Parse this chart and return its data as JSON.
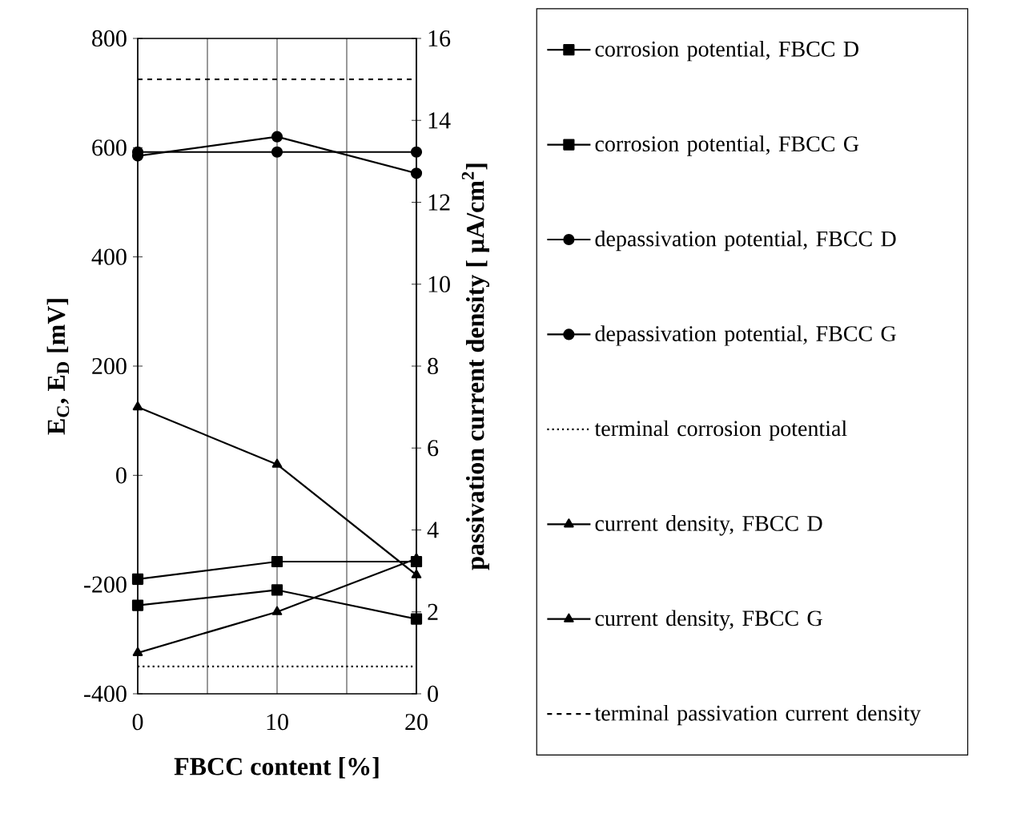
{
  "chart_data": {
    "type": "line",
    "xlabel": "FBCC content [%]",
    "ylabel": "**E$_{C}$, E$_{D}$ [mV]**",
    "y2label": "**passivation current density [ μA/cm$^{2}$]**",
    "x": [
      0,
      10,
      20
    ],
    "series": [
      {
        "name": "corrosion potential, FBCC D",
        "color": "#000000",
        "marker": "square",
        "values": [
          -190,
          -158,
          -158
        ]
      },
      {
        "name": "corrosion potential, FBCC G",
        "color": "#000000",
        "marker": "square",
        "values": [
          -238,
          -210,
          -263
        ]
      },
      {
        "name": "depassivation potential, FBCC D",
        "color": "#000000",
        "marker": "circle",
        "values": [
          585,
          620,
          553
        ]
      },
      {
        "name": "depassivation potential, FBCC G",
        "color": "#000000",
        "marker": "circle",
        "values": [
          592,
          592,
          592
        ]
      },
      {
        "name": "current density, FBCC D",
        "color": "#000000",
        "marker": "triangle",
        "axis": "y2",
        "values": [
          7.0,
          5.6,
          2.9
        ]
      },
      {
        "name": "current density, FBCC G",
        "color": "#000000",
        "marker": "triangle",
        "axis": "y2",
        "values": [
          1.0,
          2.0,
          3.3
        ]
      }
    ],
    "ref_lines": [
      {
        "axis": "y",
        "value": -350,
        "label": "terminal corrosion potential",
        "color": "#000000",
        "line_style": "dotted"
      },
      {
        "axis": "y2",
        "value": 15,
        "label": "terminal passivation current density",
        "color": "#000000",
        "line_style": "dashed"
      }
    ],
    "xlim": [
      0,
      20
    ],
    "xticks": [
      0,
      {
        "value": 5,
        "label": null
      },
      10,
      {
        "value": 15,
        "label": null
      },
      20
    ],
    "ylim": [
      -400,
      800
    ],
    "yticks": [
      -400,
      -200,
      0,
      200,
      400,
      600,
      800
    ],
    "y2lim": [
      0,
      16
    ],
    "y2ticks": [
      0,
      2,
      4,
      6,
      8,
      10,
      12,
      14,
      16
    ],
    "grid": "x",
    "legend": "right"
  }
}
